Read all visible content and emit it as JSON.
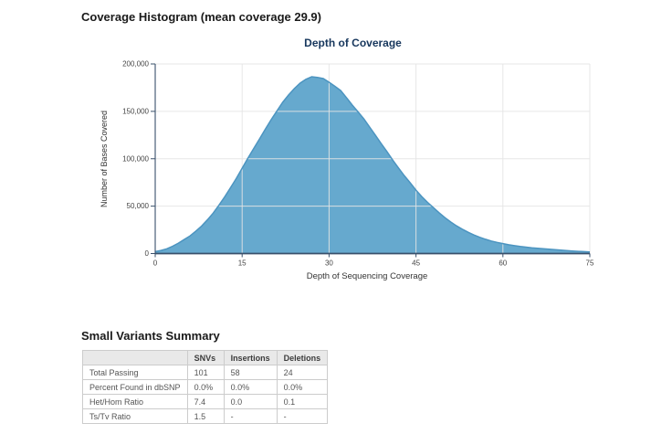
{
  "page": {
    "title": "Coverage Histogram (mean coverage 29.9)"
  },
  "chart_data": {
    "type": "area",
    "title": "Depth of Coverage",
    "xlabel": "Depth of Sequencing Coverage",
    "ylabel": "Number of Bases Covered",
    "xlim": [
      0,
      75
    ],
    "ylim": [
      0,
      200000
    ],
    "x_ticks": [
      0,
      15,
      30,
      45,
      60,
      75
    ],
    "y_ticks": [
      0,
      50000,
      100000,
      150000,
      200000
    ],
    "grid": true,
    "legend": "none",
    "colors": {
      "fill": "#66A9CE",
      "line": "#4C94C0",
      "axis": "#3A506B",
      "grid": "#E4E4E4",
      "title": "#17375D",
      "text": "#333333"
    },
    "series": [
      {
        "name": "Number of Bases Covered",
        "x": [
          0,
          1,
          2,
          3,
          4,
          5,
          6,
          7,
          8,
          9,
          10,
          11,
          12,
          13,
          14,
          15,
          16,
          17,
          18,
          19,
          20,
          21,
          22,
          23,
          24,
          25,
          26,
          27,
          28,
          29,
          30,
          31,
          32,
          33,
          34,
          35,
          36,
          37,
          38,
          39,
          40,
          41,
          42,
          43,
          44,
          45,
          46,
          47,
          48,
          49,
          50,
          51,
          52,
          53,
          54,
          55,
          56,
          57,
          58,
          59,
          60,
          61,
          62,
          63,
          64,
          65,
          66,
          67,
          68,
          69,
          70,
          71,
          72,
          73,
          74,
          75
        ],
        "y": [
          2000,
          3300,
          5000,
          7700,
          11000,
          14700,
          18600,
          23500,
          29000,
          35500,
          42700,
          51000,
          60000,
          69500,
          79400,
          90000,
          100600,
          110800,
          120900,
          131200,
          141100,
          150500,
          159500,
          167200,
          174000,
          179800,
          183800,
          186500,
          185800,
          184600,
          180700,
          176500,
          172000,
          164500,
          156600,
          149500,
          142100,
          133500,
          124700,
          116000,
          107400,
          98500,
          90000,
          82000,
          74600,
          66900,
          60100,
          54000,
          48500,
          43000,
          37900,
          33300,
          29200,
          25600,
          22500,
          19600,
          17200,
          15000,
          13200,
          11800,
          10500,
          9300,
          8300,
          7400,
          6700,
          6100,
          5600,
          5100,
          4600,
          4100,
          3600,
          3100,
          2700,
          2300,
          2000,
          1700
        ]
      }
    ]
  },
  "variants_summary": {
    "title": "Small Variants Summary",
    "columns": [
      "",
      "SNVs",
      "Insertions",
      "Deletions"
    ],
    "rows": [
      {
        "label": "Total Passing",
        "values": [
          "101",
          "58",
          "24"
        ]
      },
      {
        "label": "Percent Found in dbSNP",
        "values": [
          "0.0%",
          "0.0%",
          "0.0%"
        ]
      },
      {
        "label": "Het/Hom Ratio",
        "values": [
          "7.4",
          "0.0",
          "0.1"
        ]
      },
      {
        "label": "Ts/Tv Ratio",
        "values": [
          "1.5",
          "-",
          "-"
        ]
      }
    ]
  }
}
